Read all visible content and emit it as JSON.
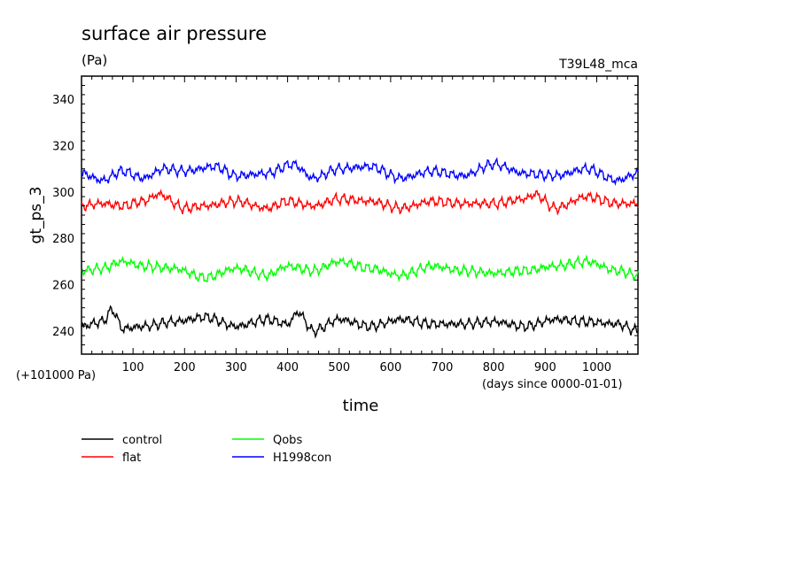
{
  "chart_data": {
    "type": "line",
    "title": "surface air pressure",
    "units": "(Pa)",
    "experiment": "T39L48_mca",
    "ylabel": "gt_ps_3",
    "xlabel": "time",
    "y_offset_label": "(+101000 Pa)",
    "x_units_label": "(days since 0000-01-01)",
    "xlim": [
      0,
      1080
    ],
    "ylim": [
      230,
      350
    ],
    "x_ticks": [
      100,
      200,
      300,
      400,
      500,
      600,
      700,
      800,
      900,
      1000
    ],
    "y_ticks": [
      240,
      260,
      280,
      300,
      320,
      340
    ],
    "legend_position": "bottom-left",
    "series": [
      {
        "name": "control",
        "color": "#000000",
        "x": [
          0,
          40,
          60,
          80,
          120,
          180,
          240,
          300,
          360,
          400,
          420,
          450,
          500,
          560,
          620,
          680,
          740,
          800,
          860,
          920,
          980,
          1040,
          1080
        ],
        "y": [
          242,
          244,
          249,
          241,
          242,
          244,
          246,
          242,
          245,
          243,
          248,
          240,
          245,
          242,
          245,
          243,
          243,
          244,
          242,
          245,
          244,
          243,
          240
        ]
      },
      {
        "name": "flat",
        "color": "#ff0000",
        "x": [
          0,
          40,
          80,
          120,
          150,
          200,
          240,
          300,
          360,
          400,
          450,
          500,
          560,
          620,
          680,
          740,
          800,
          860,
          880,
          920,
          980,
          1040,
          1080
        ],
        "y": [
          294,
          295,
          294,
          296,
          299,
          293,
          294,
          296,
          293,
          296,
          294,
          297,
          296,
          293,
          296,
          295,
          295,
          297,
          299,
          293,
          298,
          295,
          295
        ]
      },
      {
        "name": "Qobs",
        "color": "#00ff00",
        "x": [
          0,
          40,
          80,
          120,
          180,
          240,
          300,
          360,
          400,
          450,
          500,
          560,
          620,
          680,
          740,
          800,
          860,
          920,
          980,
          1040,
          1080
        ],
        "y": [
          266,
          267,
          270,
          268,
          267,
          263,
          267,
          264,
          268,
          266,
          270,
          267,
          264,
          268,
          266,
          265,
          266,
          268,
          270,
          266,
          264
        ]
      },
      {
        "name": "H1998con",
        "color": "#0000ff",
        "x": [
          0,
          40,
          80,
          120,
          160,
          200,
          260,
          300,
          360,
          410,
          450,
          500,
          560,
          620,
          680,
          740,
          800,
          860,
          920,
          980,
          1040,
          1080
        ],
        "y": [
          308,
          305,
          309,
          306,
          310,
          309,
          311,
          307,
          308,
          312,
          306,
          310,
          311,
          306,
          309,
          307,
          312,
          308,
          307,
          310,
          305,
          308
        ]
      }
    ]
  }
}
